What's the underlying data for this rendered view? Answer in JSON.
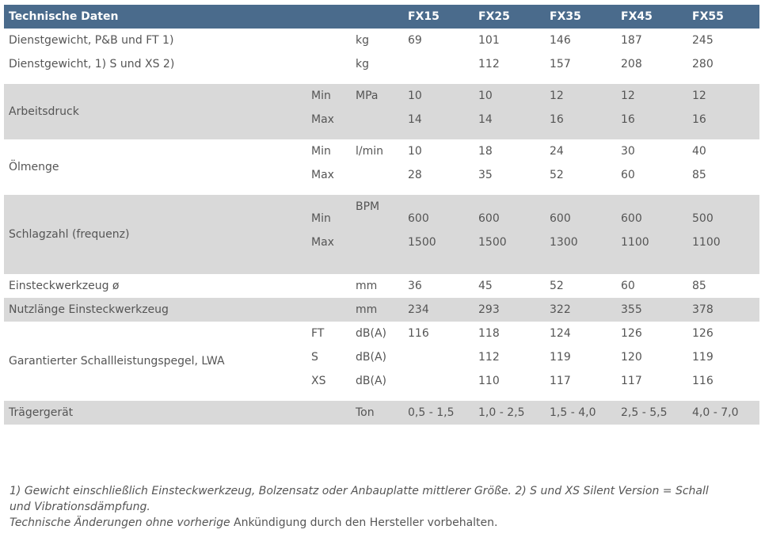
{
  "header": {
    "title": "Technische Daten",
    "models": [
      "FX15",
      "FX25",
      "FX35",
      "FX45",
      "FX55"
    ]
  },
  "rows": {
    "weight1": {
      "label": "Dienstgewicht, P&B und FT 1)",
      "unit": "kg",
      "values": [
        "69",
        "101",
        "146",
        "187",
        "245"
      ]
    },
    "weight2": {
      "label": "Dienstgewicht, 1) S und XS 2)",
      "unit": "kg",
      "values": [
        "",
        "112",
        "157",
        "208",
        "280"
      ]
    },
    "pressure": {
      "label": "Arbeitsdruck",
      "unit": "MPa",
      "min_label": "Min",
      "max_label": "Max",
      "min": [
        "10",
        "10",
        "12",
        "12",
        "12"
      ],
      "max": [
        "14",
        "14",
        "16",
        "16",
        "16"
      ]
    },
    "oil": {
      "label": "Ölmenge",
      "unit": "l/min",
      "min_label": "Min",
      "max_label": "Max",
      "min": [
        "10",
        "18",
        "24",
        "30",
        "40"
      ],
      "max": [
        "28",
        "35",
        "52",
        "60",
        "85"
      ]
    },
    "impact": {
      "label": "Schlagzahl (frequenz)",
      "unit": "BPM",
      "min_label": "Min",
      "max_label": "Max",
      "min": [
        "600",
        "600",
        "600",
        "600",
        "500"
      ],
      "max": [
        "1500",
        "1500",
        "1300",
        "1100",
        "1100"
      ]
    },
    "tool": {
      "label": "Einsteckwerkzeug ø",
      "unit": "mm",
      "values": [
        "36",
        "45",
        "52",
        "60",
        "85"
      ]
    },
    "length": {
      "label": "Nutzlänge Einsteckwerkzeug",
      "unit": "mm",
      "values": [
        "234",
        "293",
        "322",
        "355",
        "378"
      ]
    },
    "sound": {
      "label": "Garantierter Schallleistungspegel, LWA",
      "lines": [
        {
          "sub": "FT",
          "unit": "dB(A)",
          "values": [
            "116",
            "118",
            "124",
            "126",
            "126"
          ]
        },
        {
          "sub": "S",
          "unit": "dB(A)",
          "values": [
            "",
            "112",
            "119",
            "120",
            "119"
          ]
        },
        {
          "sub": "XS",
          "unit": "dB(A)",
          "values": [
            "",
            "110",
            "117",
            "117",
            "116"
          ]
        }
      ]
    },
    "carrier": {
      "label": "Trägergerät",
      "unit": "Ton",
      "values": [
        "0,5 - 1,5",
        "1,0 - 2,5",
        "1,5 - 4,0",
        "2,5 - 5,5",
        "4,0 - 7,0"
      ]
    }
  },
  "footnote": {
    "line1": "1) Gewicht einschließlich Einsteckwerkzeug, Bolzensatz oder Anbauplatte mittlerer Größe. 2) S und XS Silent Version = Schall und Vibrationsdämpfung.",
    "line2_italic": "Technische Änderungen ohne vorherige",
    "line2_rest": " Ankündigung durch den Hersteller vorbehalten."
  }
}
